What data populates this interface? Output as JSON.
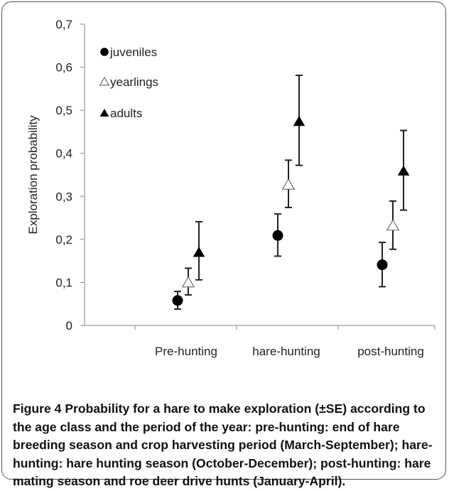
{
  "chart_data": {
    "type": "scatter",
    "categories": [
      "Pre-hunting",
      "hare-hunting",
      "post-hunting"
    ],
    "ylabel": "Exploration probability",
    "xlabel": "",
    "ylim": [
      0,
      0.7
    ],
    "yticks": [
      "0",
      "0,1",
      "0,2",
      "0,3",
      "0,4",
      "0,5",
      "0,6",
      "0,7"
    ],
    "grid": false,
    "legend_position": "top-left",
    "series": [
      {
        "name": "juveniles",
        "marker": "circle-filled",
        "values": [
          0.058,
          0.209,
          0.141
        ],
        "err_low": [
          0.038,
          0.161,
          0.09
        ],
        "err_high": [
          0.079,
          0.259,
          0.193
        ]
      },
      {
        "name": "yearlings",
        "marker": "triangle-open",
        "values": [
          0.1,
          0.327,
          0.232
        ],
        "err_low": [
          0.071,
          0.274,
          0.177
        ],
        "err_high": [
          0.133,
          0.384,
          0.289
        ]
      },
      {
        "name": "adults",
        "marker": "triangle-filled",
        "values": [
          0.17,
          0.474,
          0.359
        ],
        "err_low": [
          0.106,
          0.372,
          0.268
        ],
        "err_high": [
          0.241,
          0.581,
          0.453
        ]
      }
    ]
  },
  "caption": {
    "label": "Figure 4",
    "text": " Probability for a hare to make exploration (±SE) according to the age class and the period of the year: pre-hunting: end of hare breeding season and crop harvesting period (March-September); hare-hunting: hare hunting season (October-December); post-hunting: hare mating season and roe deer drive hunts (January-April)."
  }
}
